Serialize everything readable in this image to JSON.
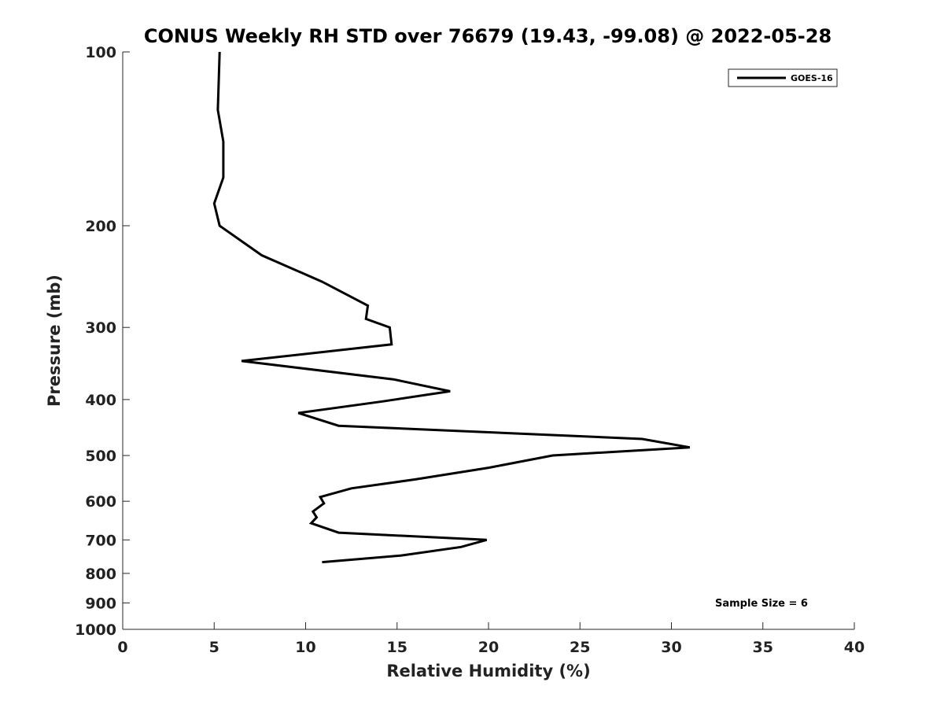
{
  "chart_data": {
    "type": "line",
    "title": "CONUS Weekly RH STD over 76679 (19.43, -99.08) @ 2022-05-28",
    "xlabel": "Relative Humidity (%)",
    "ylabel": "Pressure (mb)",
    "xlim": [
      0,
      40
    ],
    "ylim": [
      100,
      1000
    ],
    "y_scale": "log",
    "y_inverted": true,
    "x_ticks": [
      0,
      5,
      10,
      15,
      20,
      25,
      30,
      35,
      40
    ],
    "y_ticks": [
      100,
      200,
      300,
      400,
      500,
      600,
      700,
      800,
      900,
      1000
    ],
    "grid": false,
    "legend_position": "top-right",
    "annotation": "Sample Size = 6",
    "series": [
      {
        "name": "GOES-16",
        "color": "#000000",
        "points": [
          [
            5.3,
            100
          ],
          [
            5.2,
            126
          ],
          [
            5.5,
            143
          ],
          [
            5.5,
            165
          ],
          [
            5.0,
            183
          ],
          [
            5.3,
            200
          ],
          [
            7.6,
            225
          ],
          [
            10.9,
            250
          ],
          [
            13.4,
            275
          ],
          [
            13.3,
            290
          ],
          [
            14.6,
            300
          ],
          [
            14.7,
            321
          ],
          [
            6.5,
            343
          ],
          [
            14.8,
            369
          ],
          [
            17.9,
            387
          ],
          [
            14.2,
            403
          ],
          [
            9.6,
            422
          ],
          [
            11.8,
            444
          ],
          [
            28.4,
            468
          ],
          [
            31.0,
            484
          ],
          [
            23.5,
            500
          ],
          [
            20.0,
            525
          ],
          [
            16.0,
            550
          ],
          [
            12.5,
            570
          ],
          [
            10.8,
            590
          ],
          [
            11.0,
            605
          ],
          [
            10.4,
            625
          ],
          [
            10.6,
            640
          ],
          [
            10.3,
            655
          ],
          [
            11.8,
            680
          ],
          [
            19.9,
            700
          ],
          [
            18.5,
            720
          ],
          [
            15.2,
            745
          ],
          [
            10.9,
            765
          ]
        ]
      }
    ]
  }
}
